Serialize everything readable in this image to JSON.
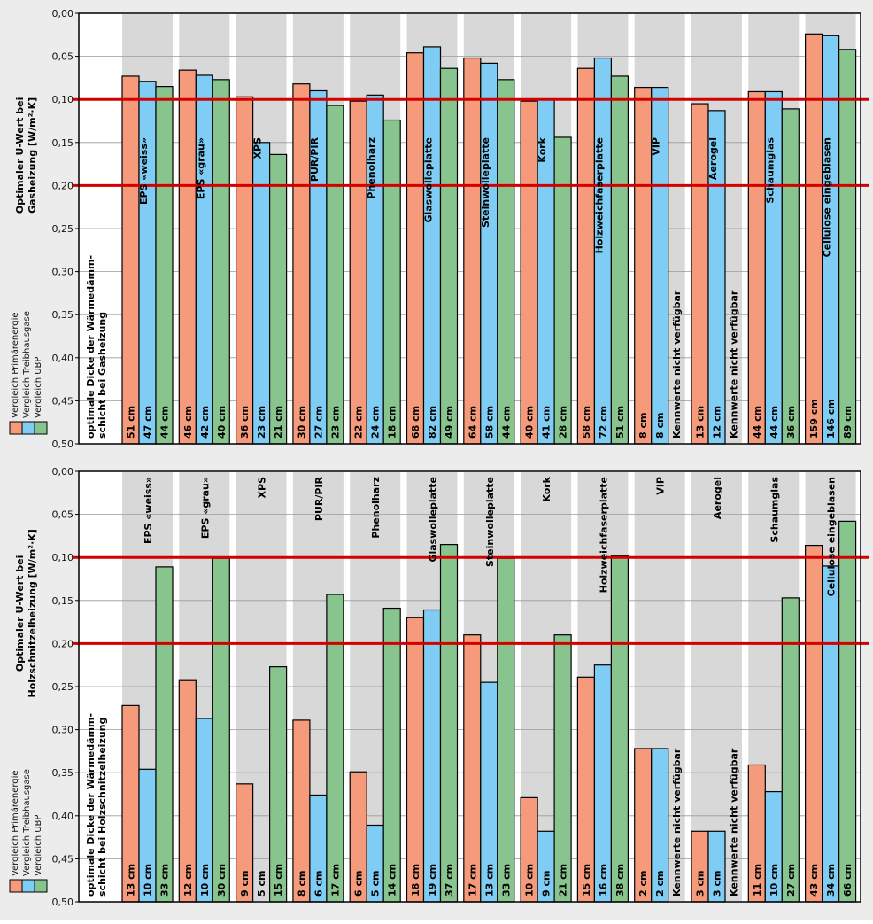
{
  "colors": {
    "energy": "#f59a7a",
    "ghg": "#7fccf4",
    "ubp": "#88c48e",
    "stripe": "#d8d8d8",
    "refline": "#d40000",
    "grid": "#9a9a9a",
    "background": "#ececec"
  },
  "chart_data": [
    {
      "type": "bar",
      "title": "",
      "ylabel_line1": "Optimaler U-Wert bei",
      "ylabel_line2": "Gasheizung [W/m²·K]",
      "thickness_label_line1": "optimale Dicke der Wärmedämm-",
      "thickness_label_line2": "schicht bei Gasheizung",
      "legend": [
        "Vergleich Primärenergie",
        "Vergleich Treibhausgase",
        "Vergleich UBP"
      ],
      "ylim": [
        0.0,
        0.5
      ],
      "y_inverted": true,
      "yticks": [
        "0,00",
        "0,05",
        "0,10",
        "0,15",
        "0,20",
        "0,25",
        "0,30",
        "0,35",
        "0,40",
        "0,45",
        "0,50"
      ],
      "reference_lines": [
        0.1,
        0.2
      ],
      "label_position": "inside-top",
      "not_available_text": "Kennwerte nicht verfügbar",
      "categories": [
        "EPS «weiss»",
        "EPS «grau»",
        "XPS",
        "PUR/PIR",
        "Phenolharz",
        "Glaswolleplatte",
        "Steinwolleplatte",
        "Kork",
        "Holzweichfaserplatte",
        "VIP",
        "Aerogel",
        "Schaumglas",
        "Cellulose eingeblasen"
      ],
      "series": [
        {
          "name": "Vergleich Primärenergie",
          "values": [
            0.073,
            0.066,
            0.097,
            0.082,
            0.102,
            0.046,
            0.052,
            0.102,
            0.064,
            0.086,
            0.105,
            0.091,
            0.024
          ]
        },
        {
          "name": "Vergleich Treibhausgase",
          "values": [
            0.079,
            0.072,
            0.15,
            0.09,
            0.095,
            0.039,
            0.058,
            0.1,
            0.052,
            0.086,
            0.113,
            0.091,
            0.026
          ]
        },
        {
          "name": "Vergleich UBP",
          "values": [
            0.085,
            0.077,
            0.164,
            0.107,
            0.124,
            0.064,
            0.077,
            0.144,
            0.073,
            null,
            null,
            0.111,
            0.042
          ]
        }
      ],
      "thickness": [
        [
          "51 cm",
          "47 cm",
          "44 cm"
        ],
        [
          "46 cm",
          "42 cm",
          "40 cm"
        ],
        [
          "36 cm",
          "23 cm",
          "21 cm"
        ],
        [
          "30 cm",
          "27 cm",
          "23 cm"
        ],
        [
          "22 cm",
          "24 cm",
          "18 cm"
        ],
        [
          "68 cm",
          "82 cm",
          "49 cm"
        ],
        [
          "64 cm",
          "58 cm",
          "44 cm"
        ],
        [
          "40 cm",
          "41 cm",
          "28 cm"
        ],
        [
          "58 cm",
          "72 cm",
          "51 cm"
        ],
        [
          "8 cm",
          "8 cm",
          null
        ],
        [
          "13 cm",
          "12 cm",
          null
        ],
        [
          "44 cm",
          "44 cm",
          "36 cm"
        ],
        [
          "159 cm",
          "146 cm",
          "89 cm"
        ]
      ]
    },
    {
      "type": "bar",
      "title": "",
      "ylabel_line1": "Optimaler U-Wert bei",
      "ylabel_line2": "Holzschnitzelheizung [W/m²·K]",
      "thickness_label_line1": "optimale Dicke der Wärmedämm-",
      "thickness_label_line2": "schicht bei Holzschnitzelheizung",
      "legend": [
        "Vergleich Primärenergie",
        "Vergleich Treibhausgase",
        "Vergleich UBP"
      ],
      "ylim": [
        0.0,
        0.5
      ],
      "y_inverted": true,
      "yticks": [
        "0,00",
        "0,05",
        "0,10",
        "0,15",
        "0,20",
        "0,25",
        "0,30",
        "0,35",
        "0,40",
        "0,45",
        "0,50"
      ],
      "reference_lines": [
        0.1,
        0.2
      ],
      "label_position": "top",
      "not_available_text": "Kennwerte nicht verfügbar",
      "categories": [
        "EPS «weiss»",
        "EPS «grau»",
        "XPS",
        "PUR/PIR",
        "Phenolharz",
        "Glaswolleplatte",
        "Steinwolleplatte",
        "Kork",
        "Holzweichfaserplatte",
        "VIP",
        "Aerogel",
        "Schaumglas",
        "Cellulose eingeblasen"
      ],
      "series": [
        {
          "name": "Vergleich Primärenergie",
          "values": [
            0.272,
            0.243,
            0.363,
            0.289,
            0.349,
            0.17,
            0.19,
            0.379,
            0.239,
            0.322,
            0.418,
            0.341,
            0.086
          ]
        },
        {
          "name": "Vergleich Treibhausgase",
          "values": [
            0.346,
            0.287,
            null,
            0.376,
            0.411,
            0.161,
            0.245,
            0.418,
            0.225,
            0.322,
            0.418,
            0.372,
            0.11
          ]
        },
        {
          "name": "Vergleich UBP",
          "values": [
            0.111,
            0.101,
            0.227,
            0.143,
            0.159,
            0.085,
            0.101,
            0.19,
            0.098,
            null,
            null,
            0.147,
            0.058
          ]
        }
      ],
      "thickness": [
        [
          "13 cm",
          "10 cm",
          "33 cm"
        ],
        [
          "12 cm",
          "10 cm",
          "30 cm"
        ],
        [
          "9 cm",
          "5 cm",
          "15 cm"
        ],
        [
          "8 cm",
          "6 cm",
          "17 cm"
        ],
        [
          "6 cm",
          "5 cm",
          "14 cm"
        ],
        [
          "18 cm",
          "19 cm",
          "37 cm"
        ],
        [
          "17 cm",
          "13 cm",
          "33 cm"
        ],
        [
          "10 cm",
          "9 cm",
          "21 cm"
        ],
        [
          "15 cm",
          "16 cm",
          "38 cm"
        ],
        [
          "2 cm",
          "2 cm",
          null
        ],
        [
          "3 cm",
          "3 cm",
          null
        ],
        [
          "11 cm",
          "10 cm",
          "27 cm"
        ],
        [
          "43 cm",
          "34 cm",
          "66 cm"
        ]
      ]
    }
  ]
}
